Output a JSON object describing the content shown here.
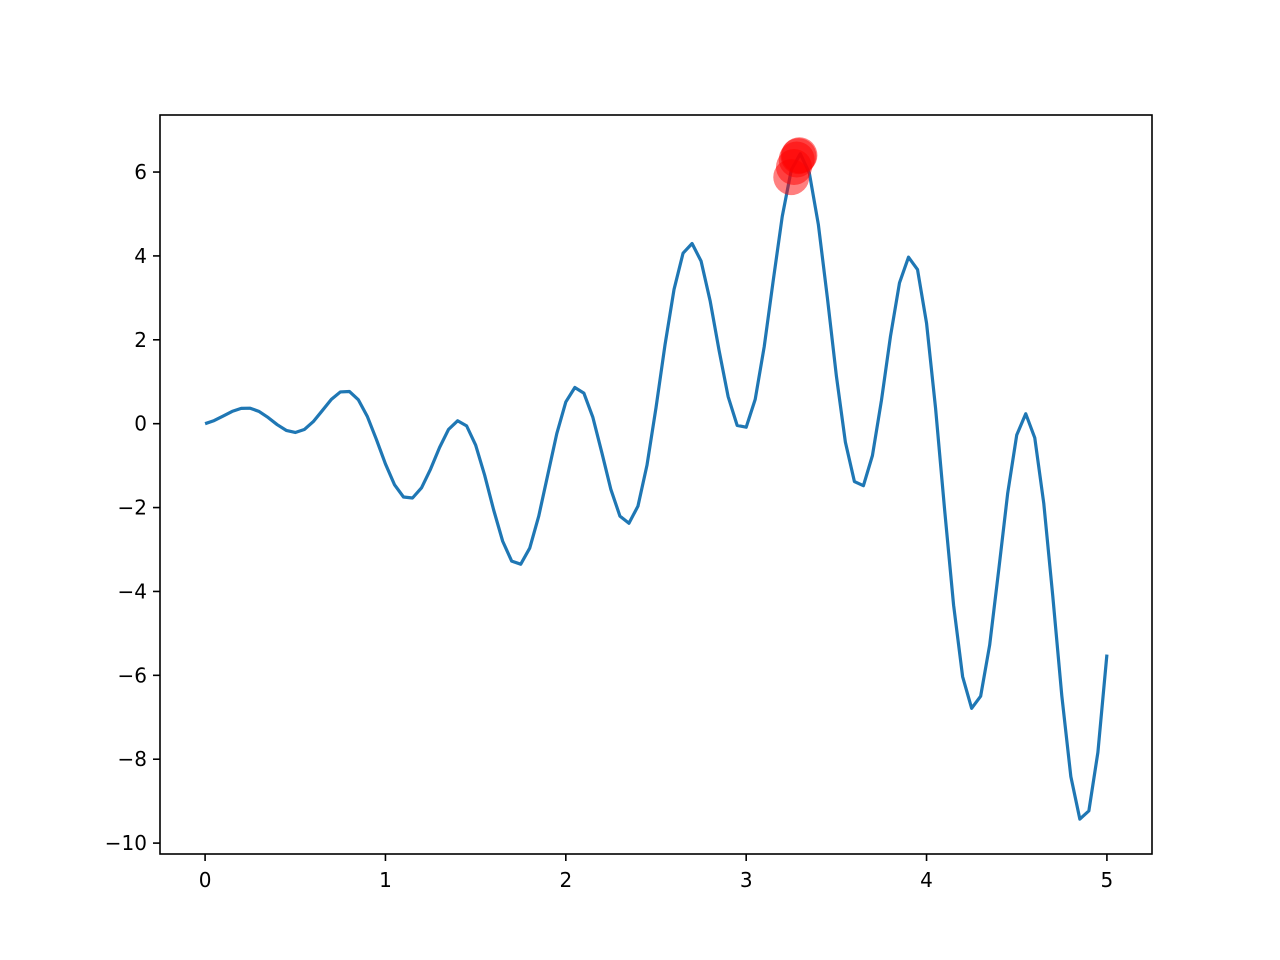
{
  "chart_data": {
    "type": "line",
    "title": "",
    "xlabel": "",
    "ylabel": "",
    "xlim": [
      -0.25,
      5.25
    ],
    "ylim": [
      -10.26,
      7.36
    ],
    "grid": false,
    "xticks": [
      0,
      1,
      2,
      3,
      4,
      5
    ],
    "xtick_labels": [
      "0",
      "1",
      "2",
      "3",
      "4",
      "5"
    ],
    "yticks": [
      6,
      4,
      2,
      0,
      -2,
      -4,
      -6,
      -8,
      -10
    ],
    "ytick_labels": [
      "6",
      "4",
      "2",
      "0",
      "−2",
      "−4",
      "−6",
      "−8",
      "−10"
    ],
    "series": [
      {
        "type": "line",
        "color": "#1f77b4",
        "x_start": 0,
        "x_step": 0.05,
        "y": [
          0,
          0.074,
          0.182,
          0.293,
          0.366,
          0.369,
          0.29,
          0.145,
          -0.024,
          -0.16,
          -0.21,
          -0.139,
          0.05,
          0.313,
          0.579,
          0.757,
          0.768,
          0.569,
          0.167,
          -0.378,
          -0.96,
          -1.454,
          -1.748,
          -1.772,
          -1.529,
          -1.084,
          -0.568,
          -0.135,
          0.069,
          -0.052,
          -0.51,
          -1.228,
          -2.058,
          -2.803,
          -3.278,
          -3.35,
          -2.966,
          -2.202,
          -1.218,
          -0.236,
          0.518,
          0.863,
          0.729,
          0.151,
          -0.695,
          -1.571,
          -2.203,
          -2.374,
          -1.966,
          -0.99,
          0.38,
          1.882,
          3.203,
          4.065,
          4.296,
          3.875,
          2.932,
          1.741,
          0.644,
          -0.041,
          -0.084,
          0.58,
          1.838,
          3.415,
          4.941,
          6.048,
          6.435,
          5.98,
          4.753,
          3.008,
          1.141,
          -0.44,
          -1.379,
          -1.478,
          -0.759,
          0.555,
          2.082,
          3.357,
          3.97,
          3.674,
          2.396,
          0.369,
          -2.042,
          -4.328,
          -6.031,
          -6.787,
          -6.497,
          -5.277,
          -3.494,
          -1.655,
          -0.27,
          0.237,
          -0.336,
          -1.902,
          -4.117,
          -6.489,
          -8.414,
          -9.428,
          -9.232,
          -7.836,
          -5.505
        ]
      },
      {
        "type": "scatter",
        "color": "#ff0000",
        "alpha": 0.5,
        "points": [
          [
            3.25,
            5.88
          ],
          [
            3.265,
            6.12
          ],
          [
            3.28,
            6.3
          ],
          [
            3.29,
            6.38
          ],
          [
            3.295,
            6.4
          ]
        ]
      }
    ]
  }
}
